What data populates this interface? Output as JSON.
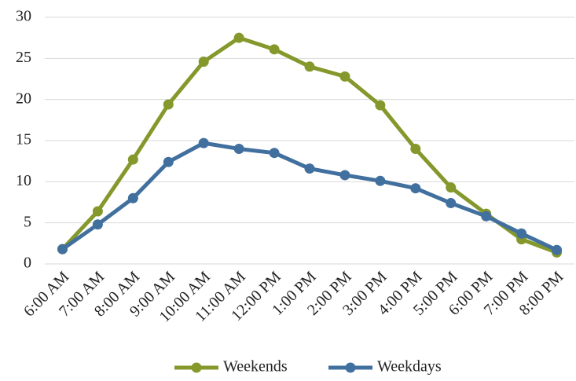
{
  "chart_data": {
    "type": "line",
    "categories": [
      "6:00 AM",
      "7:00 AM",
      "8:00 AM",
      "9:00 AM",
      "10:00 AM",
      "11:00 AM",
      "12:00 PM",
      "1:00 PM",
      "2:00 PM",
      "3:00 PM",
      "4:00 PM",
      "5:00 PM",
      "6:00 PM",
      "7:00 PM",
      "8:00 PM"
    ],
    "series": [
      {
        "name": "Weekends",
        "color": "#84982c",
        "values": [
          1.8,
          6.4,
          12.7,
          19.4,
          24.6,
          27.5,
          26.1,
          24.0,
          22.8,
          19.3,
          14.0,
          9.3,
          6.1,
          3.0,
          1.4
        ]
      },
      {
        "name": "Weekdays",
        "color": "#41709f",
        "values": [
          1.8,
          4.8,
          8.0,
          12.4,
          14.7,
          14.0,
          13.5,
          11.6,
          10.8,
          10.1,
          9.2,
          7.4,
          5.8,
          3.7,
          1.7
        ]
      }
    ],
    "ylim": [
      0,
      30
    ],
    "yticks": [
      0,
      5,
      10,
      15,
      20,
      25,
      30
    ],
    "grid": true,
    "legend": "bottom"
  }
}
